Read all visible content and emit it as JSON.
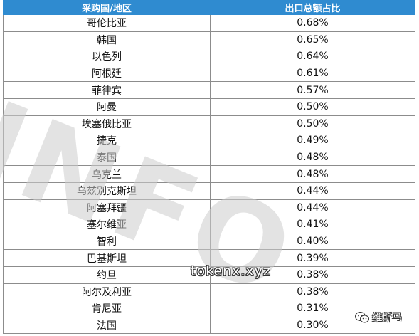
{
  "table": {
    "headers": [
      "采购国/地区",
      "出口总额占比"
    ],
    "rows": [
      {
        "country": "哥伦比亚",
        "share": "0.68%"
      },
      {
        "country": "韩国",
        "share": "0.65%"
      },
      {
        "country": "以色列",
        "share": "0.64%"
      },
      {
        "country": "阿根廷",
        "share": "0.61%"
      },
      {
        "country": "菲律宾",
        "share": "0.57%"
      },
      {
        "country": "阿曼",
        "share": "0.50%"
      },
      {
        "country": "埃塞俄比亚",
        "share": "0.50%"
      },
      {
        "country": "捷克",
        "share": "0.49%"
      },
      {
        "country": "泰国",
        "share": "0.48%"
      },
      {
        "country": "乌克兰",
        "share": "0.48%"
      },
      {
        "country": "乌兹别克斯坦",
        "share": "0.44%"
      },
      {
        "country": "阿塞拜疆",
        "share": "0.44%"
      },
      {
        "country": "塞尔维亚",
        "share": "0.41%"
      },
      {
        "country": "智利",
        "share": "0.40%"
      },
      {
        "country": "巴基斯坦",
        "share": "0.39%"
      },
      {
        "country": "约旦",
        "share": "0.38%"
      },
      {
        "country": "阿尔及利亚",
        "share": "0.38%"
      },
      {
        "country": "肯尼亚",
        "share": "0.31%"
      },
      {
        "country": "法国",
        "share": "0.30%"
      }
    ]
  },
  "watermarks": {
    "big_text": "INFO",
    "url_text": "tokenx.xyz",
    "brand_icon": "wechat-icon",
    "brand_text": "维斯马"
  },
  "colors": {
    "header_bg": "#2f8bd0",
    "header_text": "#ffffff",
    "grid": "#8c8c8c"
  }
}
